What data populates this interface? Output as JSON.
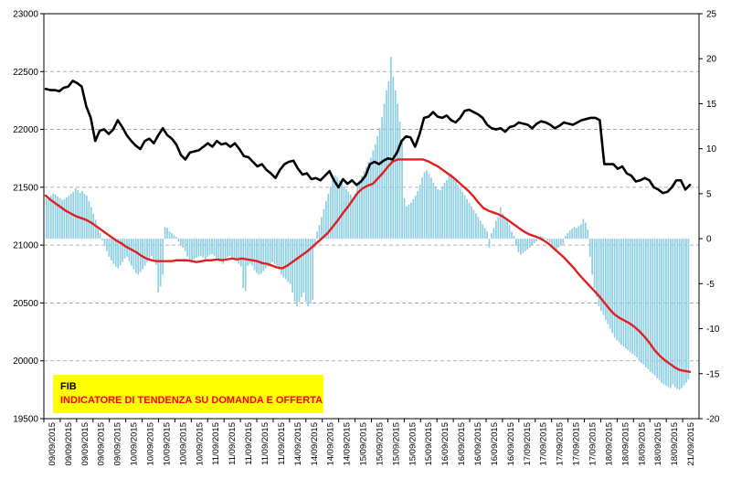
{
  "chart_data": {
    "type": "line",
    "title": "",
    "xlabel": "",
    "ylabel": "",
    "legend_box": {
      "line1": "FIB",
      "line2": "INDICATORE DI TENDENZA  SU DOMANDA E OFFERTA",
      "background": "#FFFF00",
      "line1_color": "#000000",
      "line2_color": "#FF0000"
    },
    "grid": true,
    "y_left": {
      "min": 19500,
      "max": 23000,
      "step": 500,
      "ticks": [
        "23000",
        "22500",
        "22000",
        "21500",
        "21000",
        "20500",
        "20000",
        "19500"
      ]
    },
    "y_right": {
      "min": -20,
      "max": 25,
      "step": 5,
      "ticks": [
        "25",
        "20",
        "15",
        "10",
        "5",
        "0",
        "-5",
        "-10",
        "-15",
        "-20"
      ]
    },
    "x_tick_labels": [
      "09/09/2015",
      "09/09/2015",
      "09/09/2015",
      "09/09/2015",
      "09/09/2015",
      "10/09/2015",
      "10/09/2015",
      "10/09/2015",
      "10/09/2015",
      "10/09/2015",
      "11/09/2015",
      "11/09/2015",
      "11/09/2015",
      "11/09/2015",
      "11/09/2015",
      "14/09/2015",
      "14/09/2015",
      "14/09/2015",
      "14/09/2015",
      "15/09/2015",
      "15/09/2015",
      "15/09/2015",
      "15/09/2015",
      "15/09/2015",
      "16/09/2015",
      "16/09/2015",
      "16/09/2015",
      "16/09/2015",
      "16/09/2015",
      "17/09/2015",
      "17/09/2015",
      "17/09/2015",
      "17/09/2015",
      "17/09/2015",
      "18/09/2015",
      "18/09/2015",
      "18/09/2015",
      "18/09/2015",
      "18/09/2015",
      "21/09/2015"
    ],
    "series": [
      {
        "axis": "left",
        "kind": "line",
        "color": "#000000",
        "values": [
          22350,
          22340,
          22340,
          22330,
          22360,
          22370,
          22420,
          22400,
          22370,
          22200,
          22100,
          21900,
          21990,
          22000,
          21960,
          22000,
          22080,
          22020,
          21950,
          21900,
          21860,
          21830,
          21900,
          21920,
          21880,
          21950,
          22010,
          21950,
          21920,
          21870,
          21780,
          21740,
          21800,
          21810,
          21820,
          21850,
          21880,
          21850,
          21900,
          21870,
          21880,
          21850,
          21880,
          21830,
          21770,
          21760,
          21720,
          21680,
          21700,
          21650,
          21620,
          21580,
          21650,
          21700,
          21720,
          21730,
          21660,
          21610,
          21620,
          21570,
          21580,
          21560,
          21600,
          21640,
          21560,
          21500,
          21570,
          21530,
          21560,
          21520,
          21550,
          21600,
          21700,
          21720,
          21700,
          21730,
          21750,
          21740,
          21800,
          21900,
          21940,
          21930,
          21850,
          21960,
          22100,
          22110,
          22150,
          22110,
          22100,
          22120,
          22080,
          22060,
          22100,
          22160,
          22170,
          22150,
          22130,
          22100,
          22040,
          22010,
          22000,
          22010,
          21980,
          22020,
          22030,
          22060,
          22050,
          22040,
          22010,
          22050,
          22070,
          22060,
          22040,
          22010,
          22030,
          22060,
          22050,
          22040,
          22060,
          22080,
          22090,
          22100,
          22100,
          22080,
          21700,
          21700,
          21700,
          21660,
          21680,
          21620,
          21600,
          21550,
          21560,
          21580,
          21560,
          21500,
          21480,
          21450,
          21460,
          21500,
          21560,
          21560,
          21480,
          21520
        ]
      },
      {
        "axis": "right",
        "kind": "line",
        "color": "#E02020",
        "values": [
          4.8,
          4.3,
          3.9,
          3.5,
          3.1,
          2.8,
          2.5,
          2.3,
          2.1,
          1.8,
          1.4,
          1.0,
          0.6,
          0.2,
          -0.2,
          -0.5,
          -0.9,
          -1.2,
          -1.5,
          -1.9,
          -2.2,
          -2.4,
          -2.5,
          -2.5,
          -2.5,
          -2.5,
          -2.4,
          -2.4,
          -2.4,
          -2.5,
          -2.6,
          -2.5,
          -2.4,
          -2.4,
          -2.3,
          -2.4,
          -2.3,
          -2.2,
          -2.3,
          -2.2,
          -2.3,
          -2.4,
          -2.5,
          -2.7,
          -2.8,
          -3.0,
          -3.2,
          -3.3,
          -3.0,
          -2.6,
          -2.2,
          -1.8,
          -1.4,
          -0.9,
          -0.4,
          0.1,
          0.6,
          1.3,
          2.0,
          2.8,
          3.5,
          4.3,
          5.1,
          5.6,
          5.9,
          6.1,
          6.7,
          7.3,
          8.0,
          8.6,
          8.8,
          8.8,
          8.8,
          8.8,
          8.8,
          8.8,
          8.6,
          8.3,
          8.0,
          7.6,
          7.2,
          6.8,
          6.3,
          5.8,
          5.3,
          4.7,
          4.0,
          3.4,
          3.1,
          2.9,
          2.7,
          2.4,
          2.0,
          1.6,
          1.2,
          0.8,
          0.5,
          0.3,
          0.1,
          -0.2,
          -0.6,
          -1.1,
          -1.6,
          -2.1,
          -2.7,
          -3.3,
          -4.0,
          -4.6,
          -5.2,
          -5.8,
          -6.4,
          -7.1,
          -7.8,
          -8.4,
          -8.8,
          -9.1,
          -9.4,
          -9.8,
          -10.3,
          -10.9,
          -11.6,
          -12.4,
          -13.0,
          -13.5,
          -13.9,
          -14.3,
          -14.6,
          -14.7,
          -14.8
        ]
      },
      {
        "axis": "right",
        "kind": "bar",
        "color": "#8ECFE3",
        "values": [
          4.5,
          4.6,
          4.8,
          5.0,
          4.9,
          4.7,
          4.5,
          4.3,
          4.4,
          4.6,
          4.8,
          5.0,
          5.2,
          5.6,
          5.4,
          5.1,
          5.3,
          5.0,
          4.8,
          4.2,
          3.5,
          2.8,
          2.1,
          1.4,
          0.6,
          -0.2,
          -0.8,
          -1.4,
          -2.0,
          -2.4,
          -2.8,
          -3.1,
          -3.3,
          -3.0,
          -2.6,
          -2.2,
          -2.0,
          -2.5,
          -3.0,
          -3.4,
          -3.8,
          -4.0,
          -3.7,
          -3.4,
          -3.0,
          -2.6,
          -2.2,
          -1.9,
          -2.3,
          -2.9,
          -6.0,
          -5.3,
          -4.0,
          1.3,
          1.2,
          0.8,
          0.6,
          0.4,
          0.2,
          -0.3,
          -0.7,
          -1.0,
          -1.4,
          -2.0,
          -2.4,
          -2.5,
          -2.3,
          -2.1,
          -2.0,
          -1.9,
          -2.1,
          -2.3,
          -2.0,
          -1.8,
          -1.7,
          -1.9,
          -2.1,
          -2.3,
          -2.5,
          -2.8,
          -2.2,
          -2.0,
          -1.9,
          -2.1,
          -2.3,
          -2.5,
          -2.8,
          -3.1,
          -5.5,
          -5.8,
          -3.0,
          -2.8,
          -3.0,
          -3.5,
          -3.8,
          -4.0,
          -3.9,
          -3.6,
          -3.3,
          -3.1,
          -2.9,
          -2.6,
          -2.8,
          -3.0,
          -3.5,
          -4.0,
          -4.3,
          -4.5,
          -4.8,
          -5.0,
          -6.0,
          -7.0,
          -7.5,
          -7.0,
          -6.5,
          -6.0,
          -7.0,
          -7.5,
          -7.2,
          -6.8,
          -1.0,
          0.8,
          1.5,
          2.4,
          3.3,
          4.2,
          5.0,
          5.8,
          6.5,
          7.0,
          6.8,
          6.5,
          6.2,
          5.8,
          5.5,
          5.2,
          4.9,
          4.6,
          5.0,
          6.0,
          6.5,
          7.0,
          7.5,
          8.0,
          8.5,
          9.0,
          9.8,
          10.5,
          11.4,
          12.3,
          13.5,
          15.0,
          16.5,
          17.5,
          20.2,
          18.0,
          16.5,
          15.0,
          13.0,
          11.0,
          4.5,
          3.6,
          3.8,
          4.0,
          4.4,
          4.8,
          5.3,
          6.0,
          6.8,
          7.4,
          7.6,
          7.2,
          6.8,
          6.2,
          5.8,
          5.5,
          5.4,
          5.8,
          6.2,
          6.5,
          7.0,
          7.2,
          6.8,
          6.4,
          6.0,
          5.6,
          5.2,
          4.8,
          4.4,
          4.0,
          3.6,
          3.2,
          2.8,
          2.4,
          2.0,
          1.6,
          1.2,
          0.8,
          -1.0,
          0.6,
          1.2,
          2.0,
          2.4,
          3.5,
          2.8,
          2.4,
          2.0,
          1.5,
          0.8,
          0.3,
          -0.8,
          -1.5,
          -1.8,
          -1.6,
          -1.4,
          -1.2,
          -1.0,
          -0.8,
          -0.5,
          -0.3,
          0.2,
          0.3,
          0.2,
          0.1,
          -0.2,
          -0.4,
          -0.7,
          -1.0,
          -1.2,
          -1.0,
          -0.8,
          -0.6,
          0.3,
          0.6,
          0.9,
          1.1,
          1.3,
          1.2,
          1.4,
          1.6,
          2.2,
          1.8,
          1.0,
          -2.0,
          -4.0,
          -5.5,
          -6.5,
          -7.5,
          -8.0,
          -8.5,
          -9.0,
          -9.5,
          -10.0,
          -10.5,
          -11.0,
          -11.3,
          -11.5,
          -11.8,
          -12.0,
          -12.2,
          -12.4,
          -12.6,
          -12.8,
          -13.0,
          -13.2,
          -13.5,
          -13.8,
          -14.0,
          -14.3,
          -14.5,
          -14.8,
          -15.0,
          -15.2,
          -15.5,
          -15.7,
          -16.0,
          -16.2,
          -16.3,
          -16.5,
          -16.6,
          -16.2,
          -16.5,
          -16.7,
          -16.8,
          -16.6,
          -16.3,
          -16.0,
          -15.6
        ]
      }
    ]
  }
}
